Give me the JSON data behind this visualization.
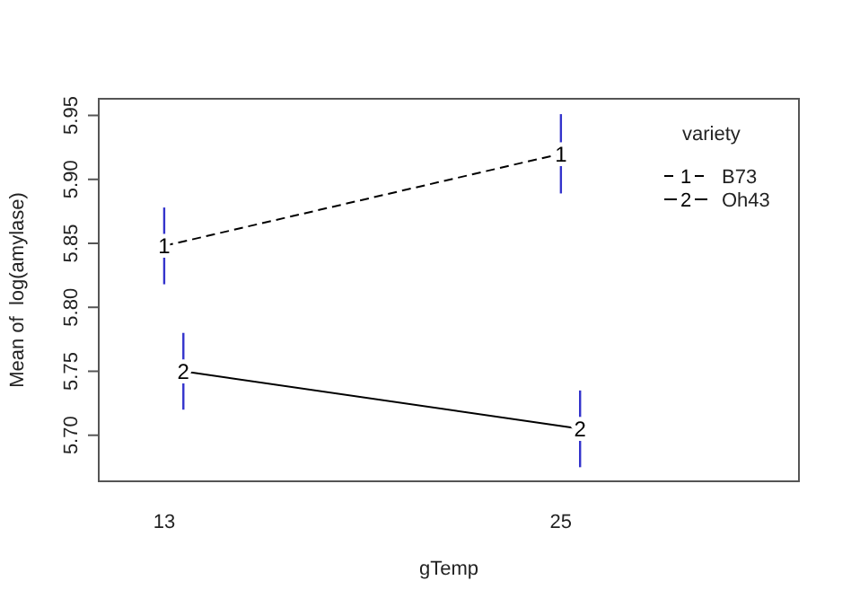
{
  "chart_data": {
    "type": "line",
    "xlabel": "gTemp",
    "ylabel": "Mean of  log(amylase)",
    "legend_title": "variety",
    "legend": "top right",
    "xlim": [
      11.02,
      32.2
    ],
    "xticks": [
      13,
      25
    ],
    "marker": "none",
    "series": [
      {
        "name": "B73",
        "color": "#000000",
        "line_style": "dashed",
        "x": [
          13,
          25
        ],
        "values": [
          5.848,
          5.92
        ],
        "errors": [
          0.03,
          0.031
        ]
      },
      {
        "name": "Oh43",
        "color": "#000000",
        "line_style": "solid",
        "x": [
          13.58,
          25.58
        ],
        "values": [
          5.75,
          5.705
        ],
        "errors": [
          0.03,
          0.03
        ]
      }
    ],
    "annotations": [
      {
        "text": "1",
        "x": 13,
        "y": 5.848
      },
      {
        "text": "1",
        "x": 25,
        "y": 5.92
      },
      {
        "text": "2",
        "x": 13.58,
        "y": 5.75
      },
      {
        "text": "2",
        "x": 25.58,
        "y": 5.705
      }
    ],
    "ylim": [
      5.664,
      5.963
    ],
    "yticks": [
      {
        "value": 5.7,
        "label": "5.70"
      },
      {
        "value": 5.75,
        "label": "5.75"
      },
      {
        "value": 5.8,
        "label": "5.80"
      },
      {
        "value": 5.85,
        "label": "5.85"
      },
      {
        "value": 5.9,
        "label": "5.90"
      },
      {
        "value": 5.95,
        "label": "5.95"
      }
    ],
    "grid": false
  }
}
